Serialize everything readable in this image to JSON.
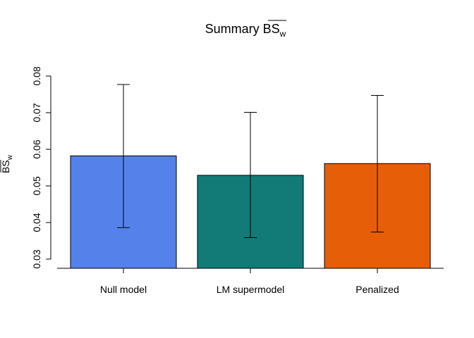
{
  "chart_data": {
    "type": "bar",
    "title": {
      "main": "Summary BS",
      "subscript": "w"
    },
    "ylabel": {
      "main": "BS",
      "subscript": "w"
    },
    "xlabel": "",
    "categories": [
      "Null model",
      "LM supermodel",
      "Penalized"
    ],
    "values": [
      0.0582,
      0.0529,
      0.0561
    ],
    "error_low": [
      0.0386,
      0.0359,
      0.0374
    ],
    "error_high": [
      0.0777,
      0.0701,
      0.0747
    ],
    "colors": [
      "#5582ea",
      "#127b78",
      "#e65e08"
    ],
    "ylim": [
      0.0275,
      0.08
    ],
    "yticks": [
      0.03,
      0.04,
      0.05,
      0.06,
      0.07,
      0.08
    ],
    "ytick_labels": [
      "0.03",
      "0.04",
      "0.05",
      "0.06",
      "0.07",
      "0.08"
    ],
    "grid": false,
    "legend": "none"
  }
}
